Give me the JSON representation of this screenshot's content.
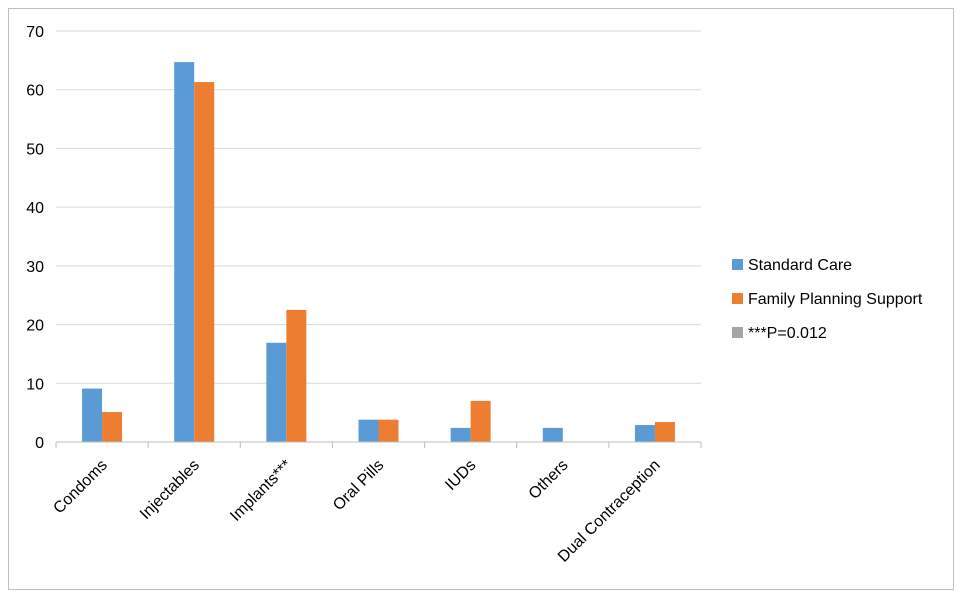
{
  "chart_data": {
    "type": "bar",
    "categories": [
      "Condoms",
      "Injectables",
      "Implants***",
      "Oral Pills",
      "IUDs",
      "Others",
      "Dual Contraception"
    ],
    "series": [
      {
        "name": "Standard Care",
        "color": "#5b9bd5",
        "values": [
          9.1,
          64.7,
          16.9,
          3.8,
          2.4,
          2.4,
          2.9
        ]
      },
      {
        "name": "Family Planning Support",
        "color": "#ed7d31",
        "values": [
          5.1,
          61.3,
          22.5,
          3.8,
          7.0,
          0,
          3.4
        ]
      }
    ],
    "legend_extra": {
      "label": "***P=0.012",
      "color": "#a5a5a5"
    },
    "ylim": [
      0,
      70
    ],
    "yticks": [
      0,
      10,
      20,
      30,
      40,
      50,
      60,
      70
    ],
    "grid": true,
    "legend_position": "right",
    "title": "",
    "xlabel": "",
    "ylabel": ""
  }
}
